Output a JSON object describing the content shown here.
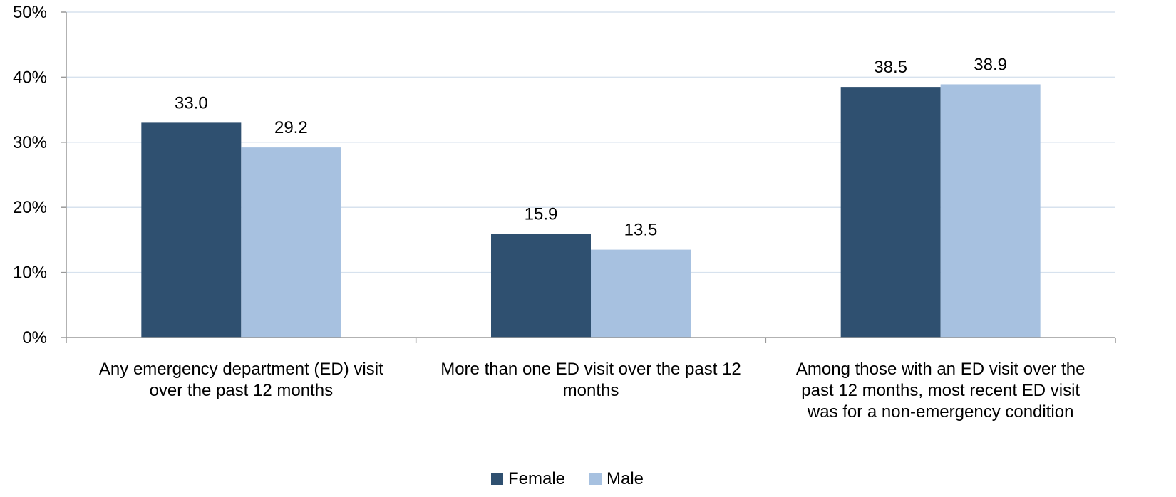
{
  "chart_data": {
    "type": "bar",
    "title": "",
    "xlabel": "",
    "ylabel": "",
    "ylim": [
      0,
      50
    ],
    "yticks": [
      "0%",
      "10%",
      "20%",
      "30%",
      "40%",
      "50%"
    ],
    "grid": true,
    "legend_position": "bottom",
    "categories": [
      [
        "Any emergency department (ED) visit",
        "over the past 12 months"
      ],
      [
        "More than one ED visit over the past 12",
        "months"
      ],
      [
        "Among those with an ED visit over the",
        "past 12 months, most recent ED visit",
        "was for a non-emergency condition"
      ]
    ],
    "series": [
      {
        "name": "Female",
        "color": "#2f5070",
        "values": [
          33.0,
          15.9,
          38.5
        ],
        "labels": [
          "33.0",
          "15.9",
          "38.5"
        ]
      },
      {
        "name": "Male",
        "color": "#a7c1e0",
        "values": [
          29.2,
          13.5,
          38.9
        ],
        "labels": [
          "29.2",
          "13.5",
          "38.9"
        ]
      }
    ],
    "colors": {
      "grid": "#d7e2ee",
      "axis": "#999999"
    }
  }
}
